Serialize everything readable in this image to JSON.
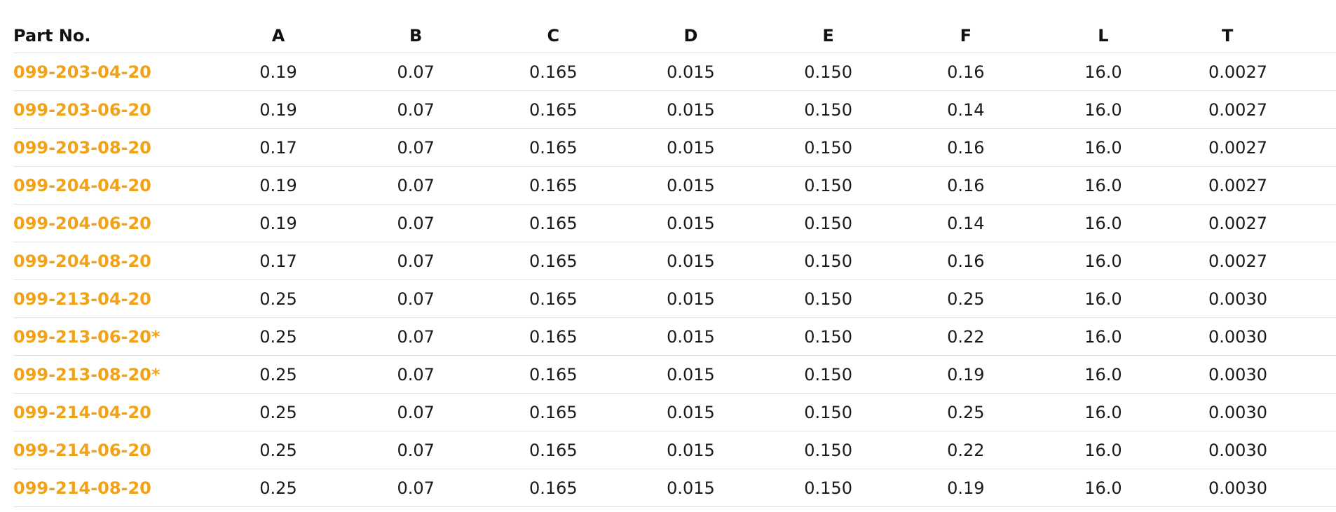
{
  "table": {
    "headers": [
      "Part No.",
      "A",
      "B",
      "C",
      "D",
      "E",
      "F",
      "L",
      "T"
    ],
    "rows": [
      [
        "099-203-04-20",
        "0.19",
        "0.07",
        "0.165",
        "0.015",
        "0.150",
        "0.16",
        "16.0",
        "0.0027"
      ],
      [
        "099-203-06-20",
        "0.19",
        "0.07",
        "0.165",
        "0.015",
        "0.150",
        "0.14",
        "16.0",
        "0.0027"
      ],
      [
        "099-203-08-20",
        "0.17",
        "0.07",
        "0.165",
        "0.015",
        "0.150",
        "0.16",
        "16.0",
        "0.0027"
      ],
      [
        "099-204-04-20",
        "0.19",
        "0.07",
        "0.165",
        "0.015",
        "0.150",
        "0.16",
        "16.0",
        "0.0027"
      ],
      [
        "099-204-06-20",
        "0.19",
        "0.07",
        "0.165",
        "0.015",
        "0.150",
        "0.14",
        "16.0",
        "0.0027"
      ],
      [
        "099-204-08-20",
        "0.17",
        "0.07",
        "0.165",
        "0.015",
        "0.150",
        "0.16",
        "16.0",
        "0.0027"
      ],
      [
        "099-213-04-20",
        "0.25",
        "0.07",
        "0.165",
        "0.015",
        "0.150",
        "0.25",
        "16.0",
        "0.0030"
      ],
      [
        "099-213-06-20*",
        "0.25",
        "0.07",
        "0.165",
        "0.015",
        "0.150",
        "0.22",
        "16.0",
        "0.0030"
      ],
      [
        "099-213-08-20*",
        "0.25",
        "0.07",
        "0.165",
        "0.015",
        "0.150",
        "0.19",
        "16.0",
        "0.0030"
      ],
      [
        "099-214-04-20",
        "0.25",
        "0.07",
        "0.165",
        "0.015",
        "0.150",
        "0.25",
        "16.0",
        "0.0030"
      ],
      [
        "099-214-06-20",
        "0.25",
        "0.07",
        "0.165",
        "0.015",
        "0.150",
        "0.22",
        "16.0",
        "0.0030"
      ],
      [
        "099-214-08-20",
        "0.25",
        "0.07",
        "0.165",
        "0.015",
        "0.150",
        "0.19",
        "16.0",
        "0.0030"
      ]
    ]
  },
  "colors": {
    "part_link": "#f0a31a",
    "text": "#1a1a1a",
    "divider": "#e3e3e3"
  }
}
